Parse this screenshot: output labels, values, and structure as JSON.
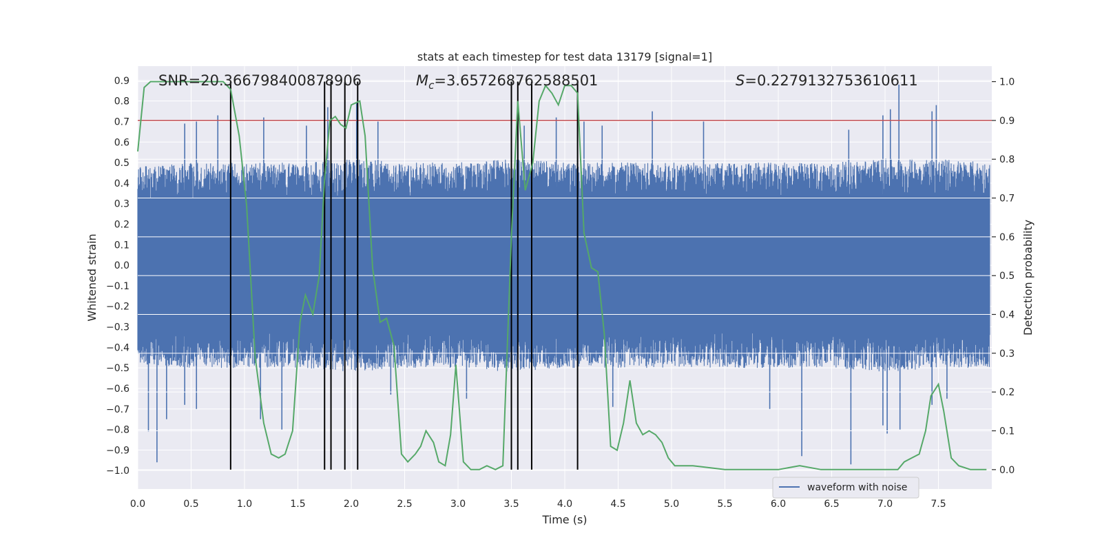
{
  "chart_data": {
    "type": "line",
    "title": "stats at each timestep for test data 13179 [signal=1]",
    "xlabel": "Time (s)",
    "ylabel_left": "Whitened strain",
    "ylabel_right": "Detection probability",
    "xlim": [
      0.0,
      8.0
    ],
    "ylim_left": [
      -1.09,
      0.97
    ],
    "ylim_right": [
      -0.05,
      1.04
    ],
    "grid": true,
    "background": "#eaeaf2",
    "x_ticks": [
      "0.0",
      "0.5",
      "1.0",
      "1.5",
      "2.0",
      "2.5",
      "3.0",
      "3.5",
      "4.0",
      "4.5",
      "5.0",
      "5.5",
      "6.0",
      "6.5",
      "7.0",
      "7.5"
    ],
    "x_tick_values": [
      0.0,
      0.5,
      1.0,
      1.5,
      2.0,
      2.5,
      3.0,
      3.5,
      4.0,
      4.5,
      5.0,
      5.5,
      6.0,
      6.5,
      7.0,
      7.5
    ],
    "left_ticks": [
      "0.9",
      "0.8",
      "0.7",
      "0.6",
      "0.5",
      "0.4",
      "0.3",
      "0.2",
      "0.1",
      "0.0",
      "−0.1",
      "−0.2",
      "−0.3",
      "−0.4",
      "−0.5",
      "−0.6",
      "−0.7",
      "−0.8",
      "−0.9",
      "−1.0"
    ],
    "left_tick_values": [
      0.9,
      0.8,
      0.7,
      0.6,
      0.5,
      0.4,
      0.3,
      0.2,
      0.1,
      0.0,
      -0.1,
      -0.2,
      -0.3,
      -0.4,
      -0.5,
      -0.6,
      -0.7,
      -0.8,
      -0.9,
      -1.0
    ],
    "right_ticks": [
      "1.0",
      "0.9",
      "0.8",
      "0.7",
      "0.6",
      "0.5",
      "0.4",
      "0.3",
      "0.2",
      "0.1",
      "0.0"
    ],
    "right_tick_values": [
      1.0,
      0.9,
      0.8,
      0.7,
      0.6,
      0.5,
      0.4,
      0.3,
      0.2,
      0.1,
      0.0
    ],
    "annotations": {
      "snr": "SNR=20.366798400878906",
      "mc_symbol": "M",
      "mc_sub": "c",
      "mc_value": "=3.657268762588501",
      "s_symbol": "S",
      "s_value": "=0.2279132753610611"
    },
    "threshold": {
      "value": 0.9,
      "axis": "right",
      "color": "#c44e52"
    },
    "vertical_lines": [
      0.87,
      1.75,
      1.81,
      1.94,
      2.06,
      3.5,
      3.56,
      3.69,
      4.12
    ],
    "vertical_line_color": "#000000",
    "series": [
      {
        "name": "waveform with noise",
        "axis": "left",
        "color": "#4c72b0",
        "kind": "noise_trace",
        "envelope_high": [
          [
            0.0,
            0.48
          ],
          [
            0.5,
            0.5
          ],
          [
            1.0,
            0.5
          ],
          [
            1.5,
            0.5
          ],
          [
            2.0,
            0.52
          ],
          [
            2.5,
            0.5
          ],
          [
            3.0,
            0.5
          ],
          [
            3.5,
            0.52
          ],
          [
            4.0,
            0.5
          ],
          [
            4.5,
            0.5
          ],
          [
            5.0,
            0.5
          ],
          [
            5.5,
            0.5
          ],
          [
            6.0,
            0.5
          ],
          [
            6.5,
            0.5
          ],
          [
            7.0,
            0.52
          ],
          [
            7.5,
            0.52
          ],
          [
            8.0,
            0.5
          ]
        ],
        "envelope_low": [
          [
            0.0,
            -0.48
          ],
          [
            0.5,
            -0.5
          ],
          [
            1.0,
            -0.5
          ],
          [
            1.5,
            -0.5
          ],
          [
            2.0,
            -0.52
          ],
          [
            2.5,
            -0.5
          ],
          [
            3.0,
            -0.5
          ],
          [
            3.5,
            -0.52
          ],
          [
            4.0,
            -0.5
          ],
          [
            4.5,
            -0.5
          ],
          [
            5.0,
            -0.5
          ],
          [
            5.5,
            -0.5
          ],
          [
            6.0,
            -0.5
          ],
          [
            6.5,
            -0.5
          ],
          [
            7.0,
            -0.52
          ],
          [
            7.5,
            -0.5
          ],
          [
            8.0,
            -0.5
          ]
        ],
        "spikes_high": [
          [
            0.44,
            0.69
          ],
          [
            0.55,
            0.7
          ],
          [
            0.75,
            0.73
          ],
          [
            1.18,
            0.72
          ],
          [
            1.58,
            0.68
          ],
          [
            1.78,
            0.77
          ],
          [
            2.05,
            0.79
          ],
          [
            2.25,
            0.7
          ],
          [
            3.56,
            0.78
          ],
          [
            3.62,
            0.68
          ],
          [
            3.92,
            0.72
          ],
          [
            4.12,
            0.76
          ],
          [
            4.18,
            0.7
          ],
          [
            4.35,
            0.68
          ],
          [
            4.82,
            0.75
          ],
          [
            5.3,
            0.7
          ],
          [
            6.66,
            0.66
          ],
          [
            6.98,
            0.73
          ],
          [
            7.05,
            0.76
          ],
          [
            7.13,
            0.88
          ],
          [
            7.44,
            0.75
          ],
          [
            7.48,
            0.78
          ]
        ],
        "spikes_low": [
          [
            0.1,
            -0.81
          ],
          [
            0.18,
            -0.96
          ],
          [
            0.27,
            -0.75
          ],
          [
            0.44,
            -0.68
          ],
          [
            0.55,
            -0.7
          ],
          [
            1.15,
            -0.75
          ],
          [
            1.35,
            -0.8
          ],
          [
            1.94,
            -0.65
          ],
          [
            2.37,
            -0.63
          ],
          [
            3.08,
            -0.65
          ],
          [
            4.12,
            -0.67
          ],
          [
            4.45,
            -0.69
          ],
          [
            5.92,
            -0.7
          ],
          [
            6.22,
            -0.93
          ],
          [
            6.68,
            -0.97
          ],
          [
            6.98,
            -0.78
          ],
          [
            7.02,
            -0.82
          ],
          [
            7.14,
            -0.8
          ],
          [
            7.44,
            -0.68
          ],
          [
            7.58,
            -0.65
          ]
        ]
      },
      {
        "name": "",
        "axis": "right",
        "color": "#55a868",
        "kind": "line",
        "points": [
          [
            0.0,
            0.82
          ],
          [
            0.06,
            0.985
          ],
          [
            0.12,
            1.0
          ],
          [
            0.25,
            1.0
          ],
          [
            0.5,
            1.0
          ],
          [
            0.65,
            1.0
          ],
          [
            0.8,
            1.0
          ],
          [
            0.87,
            0.98
          ],
          [
            0.95,
            0.86
          ],
          [
            1.02,
            0.68
          ],
          [
            1.1,
            0.29
          ],
          [
            1.18,
            0.12
          ],
          [
            1.25,
            0.04
          ],
          [
            1.32,
            0.03
          ],
          [
            1.38,
            0.04
          ],
          [
            1.45,
            0.1
          ],
          [
            1.52,
            0.38
          ],
          [
            1.57,
            0.45
          ],
          [
            1.64,
            0.4
          ],
          [
            1.7,
            0.5
          ],
          [
            1.75,
            0.75
          ],
          [
            1.8,
            0.9
          ],
          [
            1.85,
            0.91
          ],
          [
            1.9,
            0.89
          ],
          [
            1.95,
            0.88
          ],
          [
            2.0,
            0.94
          ],
          [
            2.08,
            0.95
          ],
          [
            2.13,
            0.86
          ],
          [
            2.2,
            0.52
          ],
          [
            2.27,
            0.38
          ],
          [
            2.33,
            0.39
          ],
          [
            2.4,
            0.32
          ],
          [
            2.47,
            0.04
          ],
          [
            2.53,
            0.02
          ],
          [
            2.6,
            0.04
          ],
          [
            2.65,
            0.06
          ],
          [
            2.7,
            0.1
          ],
          [
            2.77,
            0.07
          ],
          [
            2.82,
            0.02
          ],
          [
            2.88,
            0.01
          ],
          [
            2.93,
            0.09
          ],
          [
            2.98,
            0.27
          ],
          [
            3.05,
            0.02
          ],
          [
            3.12,
            0.0
          ],
          [
            3.2,
            0.0
          ],
          [
            3.27,
            0.01
          ],
          [
            3.35,
            0.0
          ],
          [
            3.42,
            0.01
          ],
          [
            3.5,
            0.6
          ],
          [
            3.56,
            0.95
          ],
          [
            3.63,
            0.72
          ],
          [
            3.7,
            0.79
          ],
          [
            3.76,
            0.95
          ],
          [
            3.82,
            0.99
          ],
          [
            3.88,
            0.97
          ],
          [
            3.94,
            0.94
          ],
          [
            4.0,
            0.99
          ],
          [
            4.06,
            0.99
          ],
          [
            4.12,
            0.97
          ],
          [
            4.18,
            0.61
          ],
          [
            4.25,
            0.52
          ],
          [
            4.31,
            0.51
          ],
          [
            4.37,
            0.35
          ],
          [
            4.43,
            0.06
          ],
          [
            4.49,
            0.05
          ],
          [
            4.55,
            0.12
          ],
          [
            4.61,
            0.23
          ],
          [
            4.67,
            0.12
          ],
          [
            4.73,
            0.09
          ],
          [
            4.79,
            0.1
          ],
          [
            4.85,
            0.09
          ],
          [
            4.91,
            0.07
          ],
          [
            4.97,
            0.03
          ],
          [
            5.03,
            0.01
          ],
          [
            5.2,
            0.01
          ],
          [
            5.5,
            0.0
          ],
          [
            5.8,
            0.0
          ],
          [
            6.0,
            0.0
          ],
          [
            6.2,
            0.01
          ],
          [
            6.4,
            0.0
          ],
          [
            6.6,
            0.0
          ],
          [
            6.8,
            0.0
          ],
          [
            7.0,
            0.0
          ],
          [
            7.12,
            0.0
          ],
          [
            7.18,
            0.02
          ],
          [
            7.25,
            0.03
          ],
          [
            7.32,
            0.04
          ],
          [
            7.38,
            0.1
          ],
          [
            7.43,
            0.19
          ],
          [
            7.5,
            0.22
          ],
          [
            7.55,
            0.15
          ],
          [
            7.62,
            0.03
          ],
          [
            7.69,
            0.01
          ],
          [
            7.8,
            0.0
          ],
          [
            7.95,
            0.0
          ]
        ]
      }
    ],
    "legend": {
      "position": "lower-right",
      "entries": [
        "waveform with noise"
      ]
    }
  }
}
